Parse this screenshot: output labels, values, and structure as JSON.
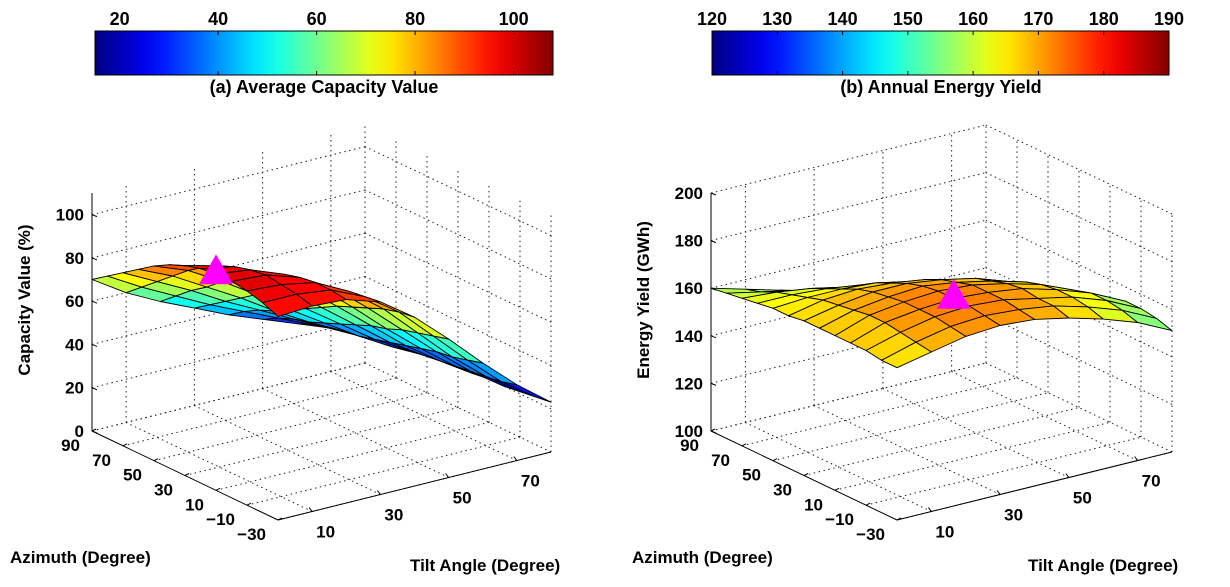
{
  "chart_data": [
    {
      "type": "surface",
      "title": "(a) Average Capacity Value",
      "zlabel": "Capacity Value (%)",
      "xlabel": "Azimuth (Degree)",
      "ylabel": "Tilt Angle (Degree)",
      "zlim": [
        0,
        110
      ],
      "z_ticks": [
        0,
        20,
        40,
        60,
        80,
        100
      ],
      "azimuth_ticks": [
        90,
        70,
        50,
        30,
        10,
        -10,
        -30
      ],
      "tilt_ticks": [
        10,
        30,
        50,
        70
      ],
      "colorbar": {
        "min": 15,
        "max": 108,
        "ticks": [
          20,
          40,
          60,
          80,
          100
        ]
      },
      "azimuth_values": [
        90,
        80,
        70,
        60,
        50,
        40,
        30,
        20,
        10,
        0,
        -10,
        -20,
        -30
      ],
      "tilt_values": [
        0,
        10,
        20,
        30,
        40,
        50,
        60,
        70,
        80
      ],
      "z_values": [
        [
          70,
          60,
          52,
          45,
          38,
          32,
          26,
          20,
          15
        ],
        [
          75,
          66,
          58,
          50,
          43,
          36,
          29,
          22,
          16
        ],
        [
          80,
          72,
          64,
          55,
          47,
          39,
          31,
          23,
          16
        ],
        [
          85,
          78,
          69,
          60,
          50,
          41,
          33,
          24,
          17
        ],
        [
          90,
          84,
          75,
          65,
          54,
          44,
          34,
          25,
          17
        ],
        [
          94,
          89,
          80,
          70,
          58,
          47,
          36,
          27,
          18
        ],
        [
          97,
          93,
          85,
          74,
          62,
          50,
          38,
          28,
          19
        ],
        [
          99,
          96,
          89,
          78,
          66,
          53,
          40,
          29,
          19
        ],
        [
          100,
          98,
          92,
          82,
          69,
          55,
          42,
          30,
          20
        ],
        [
          100,
          99,
          94,
          85,
          72,
          58,
          44,
          31,
          20
        ],
        [
          99,
          98,
          95,
          87,
          75,
          60,
          45,
          32,
          21
        ],
        [
          97,
          97,
          95,
          88,
          77,
          62,
          47,
          33,
          22
        ],
        [
          94,
          95,
          94,
          89,
          78,
          64,
          49,
          35,
          23
        ]
      ],
      "marker": {
        "shape": "triangle",
        "color": "#ff00ff",
        "azimuth": 10,
        "tilt": 0,
        "value": 100
      }
    },
    {
      "type": "surface",
      "title": "(b) Annual Energy Yield",
      "zlabel": "Energy Yield (GWh)",
      "xlabel": "Azimuth (Degree)",
      "ylabel": "Tilt Angle (Degree)",
      "zlim": [
        100,
        200
      ],
      "z_ticks": [
        100,
        120,
        140,
        160,
        180,
        200
      ],
      "azimuth_ticks": [
        90,
        70,
        50,
        30,
        10,
        -10,
        -30
      ],
      "tilt_ticks": [
        10,
        30,
        50,
        70
      ],
      "colorbar": {
        "min": 120,
        "max": 190,
        "ticks": [
          120,
          130,
          140,
          150,
          160,
          170,
          180,
          190
        ]
      },
      "azimuth_values": [
        90,
        80,
        70,
        60,
        50,
        40,
        30,
        20,
        10,
        0,
        -10,
        -20,
        -30
      ],
      "tilt_values": [
        0,
        10,
        20,
        30,
        40,
        50,
        60,
        70,
        80
      ],
      "z_values": [
        [
          160,
          156,
          152,
          148,
          144,
          139,
          133,
          127,
          120
        ],
        [
          161,
          158,
          155,
          152,
          148,
          143,
          137,
          131,
          124
        ],
        [
          162,
          161,
          159,
          156,
          152,
          147,
          142,
          136,
          129
        ],
        [
          163,
          163,
          162,
          160,
          157,
          152,
          147,
          141,
          134
        ],
        [
          164,
          165,
          165,
          164,
          161,
          157,
          152,
          146,
          139
        ],
        [
          164,
          167,
          168,
          167,
          165,
          161,
          156,
          150,
          143
        ],
        [
          165,
          168,
          170,
          170,
          168,
          165,
          160,
          154,
          147
        ],
        [
          165,
          169,
          171,
          172,
          170,
          167,
          163,
          157,
          150
        ],
        [
          165,
          170,
          172,
          173,
          172,
          169,
          165,
          159,
          152
        ],
        [
          165,
          170,
          172,
          173,
          172,
          170,
          166,
          161,
          154
        ],
        [
          165,
          169,
          172,
          173,
          172,
          169,
          166,
          161,
          154
        ],
        [
          164,
          168,
          171,
          172,
          171,
          169,
          165,
          160,
          153
        ],
        [
          164,
          167,
          170,
          171,
          170,
          167,
          163,
          158,
          151
        ]
      ],
      "marker": {
        "shape": "triangle",
        "color": "#ff00ff",
        "azimuth": 0,
        "tilt": 30,
        "value": 173
      }
    }
  ]
}
